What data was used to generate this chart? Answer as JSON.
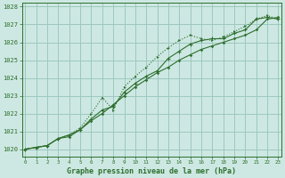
{
  "xlabel": "Graphe pression niveau de la mer (hPa)",
  "x": [
    0,
    1,
    2,
    3,
    4,
    5,
    6,
    7,
    8,
    9,
    10,
    11,
    12,
    13,
    14,
    15,
    16,
    17,
    18,
    19,
    20,
    21,
    22,
    23
  ],
  "line1": [
    1020.0,
    1020.1,
    1020.2,
    1020.6,
    1020.7,
    1021.1,
    1021.6,
    1022.0,
    1022.5,
    1023.0,
    1023.5,
    1023.9,
    1024.3,
    1024.6,
    1025.0,
    1025.3,
    1025.6,
    1025.8,
    1026.0,
    1026.2,
    1026.4,
    1026.7,
    1027.3,
    1027.4
  ],
  "line2": [
    1020.0,
    1020.1,
    1020.2,
    1020.6,
    1020.8,
    1021.1,
    1021.7,
    1022.2,
    1022.4,
    1023.2,
    1023.7,
    1024.1,
    1024.4,
    1025.1,
    1025.5,
    1025.9,
    1026.1,
    1026.2,
    1026.2,
    1026.5,
    1026.7,
    1027.3,
    1027.4,
    1027.3
  ],
  "line3": [
    1020.0,
    1020.1,
    1020.2,
    1020.6,
    1020.8,
    1021.2,
    1022.0,
    1022.9,
    1022.2,
    1023.5,
    1024.1,
    1024.6,
    1025.2,
    1025.7,
    1026.1,
    1026.4,
    1026.2,
    1026.1,
    1026.3,
    1026.6,
    1026.9,
    1027.3,
    1027.5,
    1027.3
  ],
  "line_color": "#2d6e2d",
  "bg_color": "#cde8e2",
  "grid_color": "#9dc8c0",
  "ylim": [
    1019.6,
    1028.2
  ],
  "xlim": [
    -0.3,
    23.3
  ],
  "yticks": [
    1020,
    1021,
    1022,
    1023,
    1024,
    1025,
    1026,
    1027,
    1028
  ],
  "xticks": [
    0,
    1,
    2,
    3,
    4,
    5,
    6,
    7,
    8,
    9,
    10,
    11,
    12,
    13,
    14,
    15,
    16,
    17,
    18,
    19,
    20,
    21,
    22,
    23
  ]
}
